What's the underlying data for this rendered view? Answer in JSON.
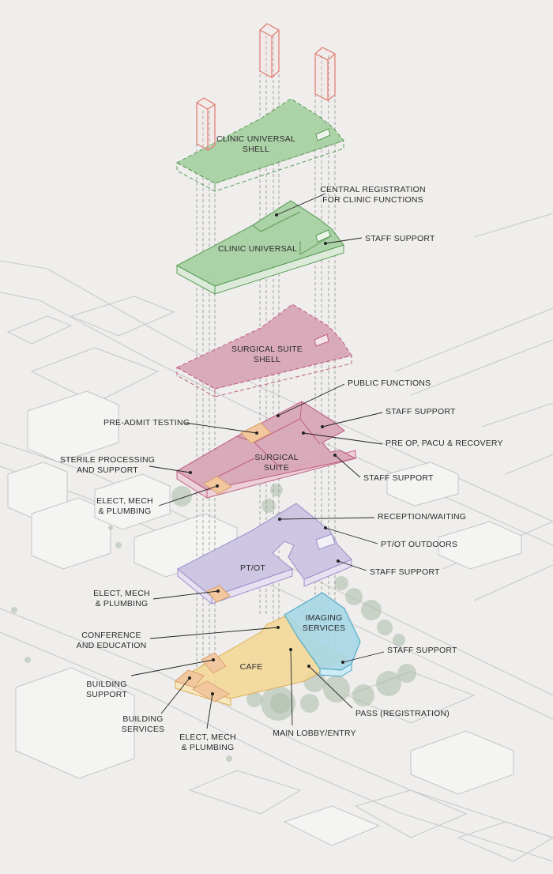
{
  "floors": {
    "clinic_shell": {
      "label_line1": "CLINIC UNIVERSAL",
      "label_line2": "SHELL",
      "fill": "#a9d1a4",
      "stroke": "#5a9d58"
    },
    "clinic": {
      "label": "CLINIC UNIVERSAL",
      "fill": "#a9d1a4",
      "stroke": "#5a9d58"
    },
    "surgical_shell": {
      "label_line1": "SURGICAL SUITE",
      "label_line2": "SHELL",
      "fill": "#d8a7b8",
      "stroke": "#c0607f"
    },
    "surgical": {
      "label_line1": "SURGICAL",
      "label_line2": "SUITE",
      "fill": "#d8a7b8",
      "stroke": "#c0607f"
    },
    "ptot": {
      "label": "PT/OT",
      "fill": "#cdc5e3",
      "stroke": "#9d8fcb"
    },
    "ground": {
      "cafe": "CAFE",
      "imaging_line1": "IMAGING",
      "imaging_line2": "SERVICES",
      "cafe_fill": "#f4d99a",
      "cafe_stroke": "#d9ac4e",
      "imaging_fill": "#a9d8e6",
      "imaging_stroke": "#49a7c6",
      "service_fill": "#f2c79e"
    },
    "tower_stroke": "#e17a6e"
  },
  "callouts": {
    "central_registration": {
      "line1": "CENTRAL REGISTRATION",
      "line2": "FOR CLINIC FUNCTIONS"
    },
    "staff_support_clinic": "STAFF SUPPORT",
    "public_functions": "PUBLIC FUNCTIONS",
    "pre_admit_testing": "PRE-ADMIT TESTING",
    "staff_support_surgical_top": "STAFF SUPPORT",
    "pre_op": "PRE OP, PACU & RECOVERY",
    "sterile_processing": {
      "line1": "STERILE PROCESSING",
      "line2": "AND SUPPORT"
    },
    "staff_support_surgical_bottom": "STAFF SUPPORT",
    "elect_mech_surgical": {
      "line1": "ELECT, MECH",
      "line2": "& PLUMBING"
    },
    "reception_waiting": "RECEPTION/WAITING",
    "ptot_outdoors": "PT/OT OUTDOORS",
    "staff_support_ptot": "STAFF SUPPORT",
    "elect_mech_ptot": {
      "line1": "ELECT, MECH",
      "line2": "& PLUMBING"
    },
    "conference": {
      "line1": "CONFERENCE",
      "line2": "AND EDUCATION"
    },
    "staff_support_ground": "STAFF SUPPORT",
    "building_support": {
      "line1": "BUILDING",
      "line2": "SUPPORT"
    },
    "building_services": {
      "line1": "BUILDING",
      "line2": "SERVICES"
    },
    "pass_registration": "PASS (REGISTRATION)",
    "main_lobby": "MAIN LOBBY/ENTRY",
    "elect_mech_ground": {
      "line1": "ELECT, MECH",
      "line2": "& PLUMBING"
    }
  }
}
